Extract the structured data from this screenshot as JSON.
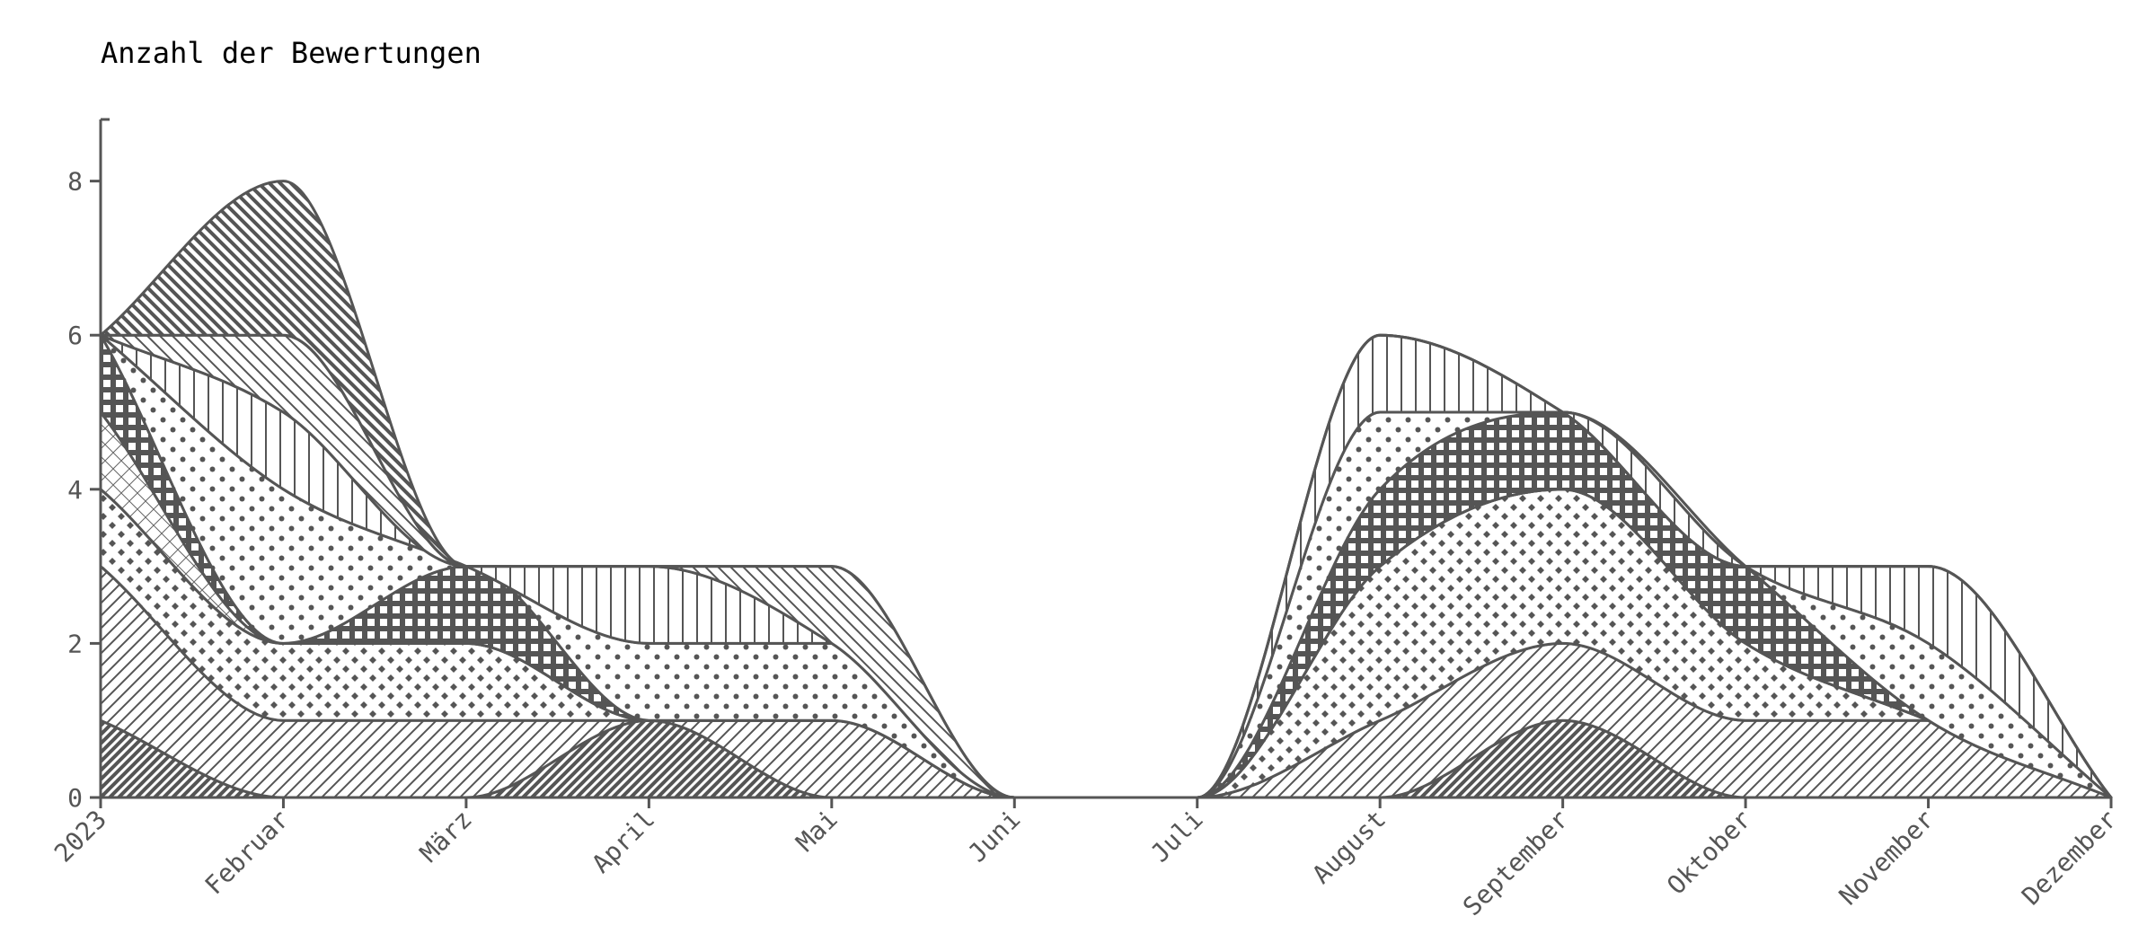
{
  "chart_data": {
    "type": "area",
    "stacked": true,
    "title": "Anzahl der Bewertungen",
    "xlabel": "",
    "ylabel": "",
    "categories": [
      "2023",
      "Februar",
      "März",
      "April",
      "Mai",
      "Juni",
      "Juli",
      "August",
      "September",
      "Oktober",
      "November",
      "Dezember"
    ],
    "ylim": [
      0,
      8.8
    ],
    "yticks": [
      0,
      2,
      4,
      6,
      8
    ],
    "grid": false,
    "legend": "none",
    "series": [
      {
        "values": [
          1,
          0,
          0,
          1,
          0,
          0,
          0,
          0,
          1,
          0,
          0,
          0
        ],
        "pattern": "dense-diagonal"
      },
      {
        "values": [
          2,
          1,
          1,
          0,
          1,
          0,
          0,
          1,
          1,
          1,
          1,
          0
        ],
        "pattern": "diagonal"
      },
      {
        "values": [
          1,
          1,
          1,
          0,
          0,
          0,
          0,
          2,
          2,
          1,
          0,
          0
        ],
        "pattern": "diamond-dots"
      },
      {
        "values": [
          1,
          0,
          0,
          0,
          0,
          0,
          0,
          0,
          0,
          0,
          0,
          0
        ],
        "pattern": "crosshatch"
      },
      {
        "values": [
          1,
          0,
          1,
          0,
          0,
          0,
          0,
          1,
          1,
          1,
          0,
          0
        ],
        "pattern": "grid-squares"
      },
      {
        "values": [
          0,
          2,
          0,
          1,
          1,
          0,
          0,
          1,
          0,
          0,
          1,
          0
        ],
        "pattern": "dots"
      },
      {
        "values": [
          0,
          1,
          0,
          1,
          0,
          0,
          0,
          1,
          0,
          0,
          1,
          0
        ],
        "pattern": "vertical-lines"
      },
      {
        "values": [
          0,
          1,
          0,
          0,
          1,
          0,
          0,
          0,
          0,
          0,
          0,
          0
        ],
        "pattern": "back-diagonal"
      },
      {
        "values": [
          0,
          2,
          0,
          0,
          0,
          0,
          0,
          0,
          0,
          0,
          0,
          0
        ],
        "pattern": "back-diagonal-dense"
      }
    ],
    "colors": {
      "stroke": "#555555",
      "fill": "#555555",
      "background": "#ffffff"
    }
  }
}
